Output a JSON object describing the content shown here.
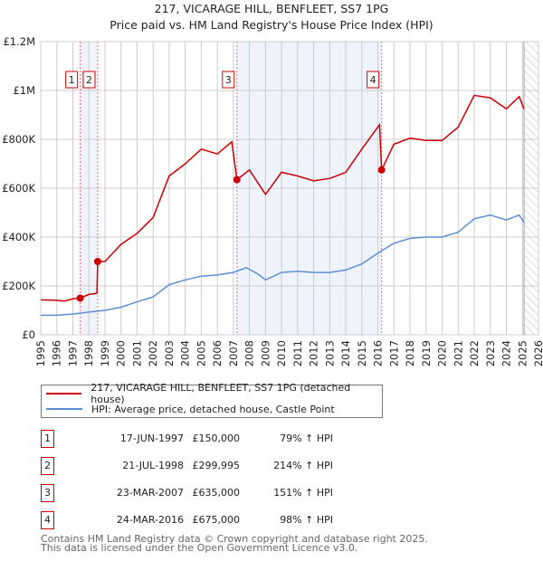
{
  "title": "217, VICARAGE HILL, BENFLEET, SS7 1PG",
  "subtitle": "Price paid vs. HM Land Registry's House Price Index (HPI)",
  "colors": {
    "property": "#cc0000",
    "hpi": "#5b8fd4",
    "shade": "#eef3fc",
    "grid": "#cccccc"
  },
  "chart_data": {
    "type": "line",
    "xlim": [
      1995,
      2026
    ],
    "ylim": [
      0,
      1200000
    ],
    "grid": true,
    "yticks": [
      {
        "v": 0,
        "label": "£0"
      },
      {
        "v": 200000,
        "label": "£200K"
      },
      {
        "v": 400000,
        "label": "£400K"
      },
      {
        "v": 600000,
        "label": "£600K"
      },
      {
        "v": 800000,
        "label": "£800K"
      },
      {
        "v": 1000000,
        "label": "£1M"
      },
      {
        "v": 1200000,
        "label": "£1.2M"
      }
    ],
    "xticks": [
      "1995",
      "1996",
      "1997",
      "1998",
      "1999",
      "2000",
      "2001",
      "2002",
      "2003",
      "2004",
      "2005",
      "2006",
      "2007",
      "2008",
      "2009",
      "2010",
      "2011",
      "2012",
      "2013",
      "2014",
      "2015",
      "2016",
      "2017",
      "2018",
      "2019",
      "2020",
      "2021",
      "2022",
      "2023",
      "2024",
      "2025",
      "2026"
    ],
    "shaded_periods": [
      [
        1997.46,
        1998.55
      ],
      [
        2007.22,
        2016.23
      ]
    ],
    "forecast_hatch_from": 2025.1,
    "series": [
      {
        "name": "217, VICARAGE HILL, BENFLEET, SS7 1PG (detached house)",
        "x": [
          1995,
          1996,
          1996.5,
          1997,
          1997.46,
          1998,
          1998.5,
          1998.55,
          1999,
          2000,
          2001,
          2002,
          2003,
          2004,
          2005,
          2006,
          2006.9,
          2007.22,
          2008,
          2009,
          2010,
          2011,
          2012,
          2013,
          2014,
          2015,
          2016.1,
          2016.23,
          2017,
          2018,
          2019,
          2020,
          2021,
          2022,
          2023,
          2024,
          2024.8,
          2025.1
        ],
        "y": [
          143000,
          141000,
          138000,
          147000,
          150000,
          165000,
          170000,
          299995,
          300000,
          370000,
          415000,
          480000,
          650000,
          700000,
          760000,
          740000,
          790000,
          635000,
          675000,
          575000,
          665000,
          650000,
          630000,
          640000,
          665000,
          760000,
          860000,
          675000,
          780000,
          805000,
          795000,
          795000,
          850000,
          980000,
          970000,
          925000,
          975000,
          925000
        ]
      },
      {
        "name": "HPI: Average price, detached house, Castle Point",
        "x": [
          1995,
          1996,
          1997,
          1998,
          1999,
          2000,
          2001,
          2002,
          2003,
          2004,
          2005,
          2006,
          2007,
          2007.8,
          2008.5,
          2009,
          2010,
          2011,
          2012,
          2013,
          2014,
          2015,
          2016,
          2017,
          2018,
          2019,
          2020,
          2021,
          2022,
          2023,
          2024,
          2024.8,
          2025.1
        ],
        "y": [
          80000,
          80000,
          85000,
          93000,
          100000,
          113000,
          135000,
          155000,
          205000,
          225000,
          240000,
          245000,
          255000,
          275000,
          250000,
          225000,
          255000,
          260000,
          255000,
          255000,
          265000,
          290000,
          335000,
          375000,
          395000,
          400000,
          400000,
          420000,
          475000,
          490000,
          470000,
          490000,
          460000
        ]
      }
    ],
    "sales": [
      {
        "label": "1",
        "x": 1997.46,
        "y": 150000
      },
      {
        "label": "2",
        "x": 1998.55,
        "y": 299995
      },
      {
        "label": "3",
        "x": 2007.22,
        "y": 635000
      },
      {
        "label": "4",
        "x": 2016.23,
        "y": 675000
      }
    ]
  },
  "legend": {
    "property": "217, VICARAGE HILL, BENFLEET, SS7 1PG (detached house)",
    "hpi": "HPI: Average price, detached house, Castle Point"
  },
  "transactions": [
    {
      "num": "1",
      "date": "17-JUN-1997",
      "price": "£150,000",
      "hpi": "79% ↑ HPI"
    },
    {
      "num": "2",
      "date": "21-JUL-1998",
      "price": "£299,995",
      "hpi": "214% ↑ HPI"
    },
    {
      "num": "3",
      "date": "23-MAR-2007",
      "price": "£635,000",
      "hpi": "151% ↑ HPI"
    },
    {
      "num": "4",
      "date": "24-MAR-2016",
      "price": "£675,000",
      "hpi": "98% ↑ HPI"
    }
  ],
  "footer": {
    "line1": "Contains HM Land Registry data © Crown copyright and database right 2025.",
    "line2": "This data is licensed under the Open Government Licence v3.0."
  }
}
